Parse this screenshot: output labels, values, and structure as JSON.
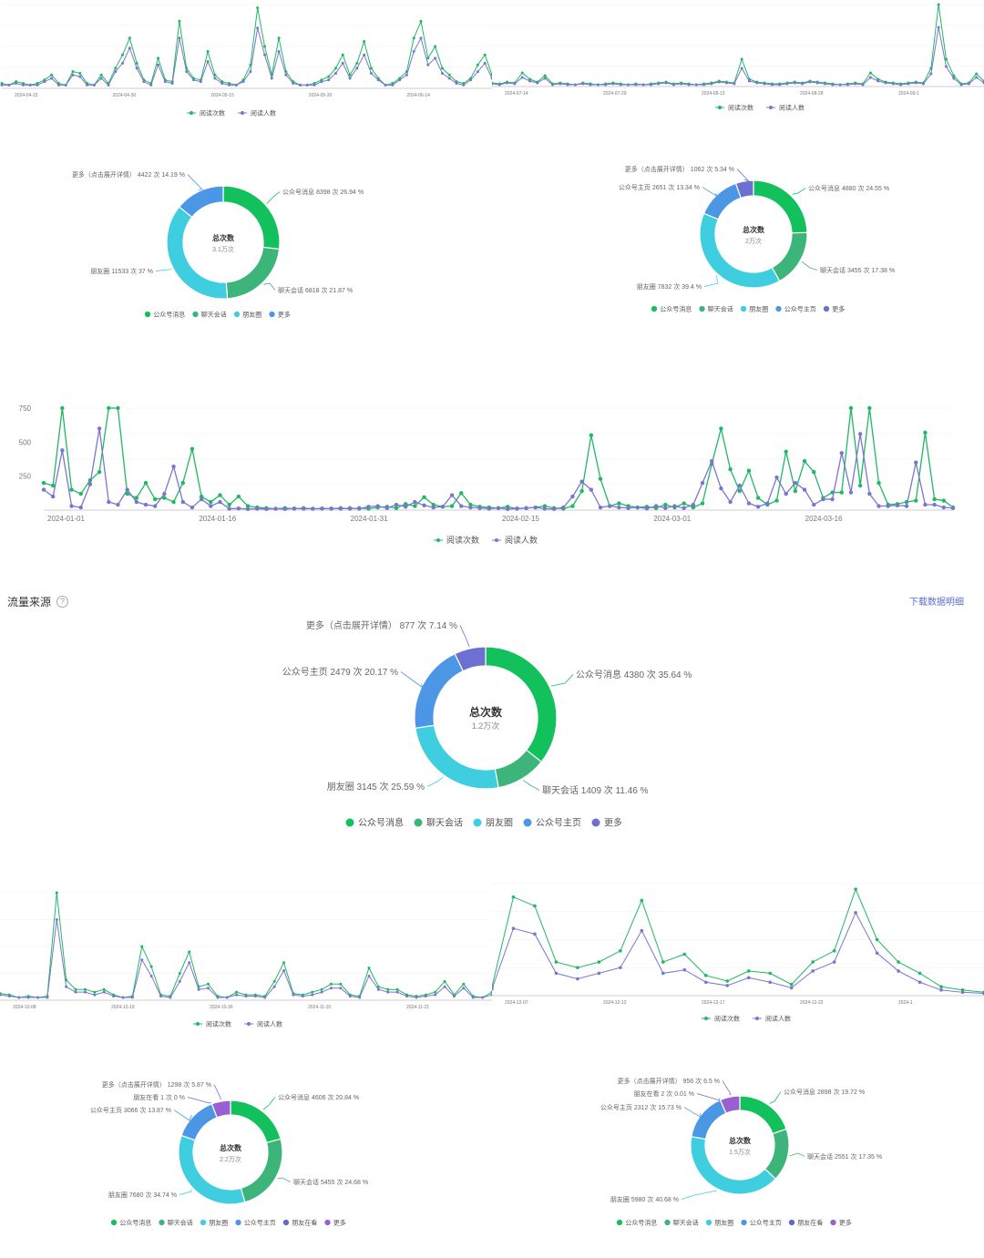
{
  "colors": {
    "read_count": "#20b864",
    "read_users": "#7a76cf",
    "gzh_msg": "#12c05c",
    "chat": "#3cb47a",
    "moments": "#3fcde0",
    "gzh_home": "#4b97e6",
    "friends_watching": "#5c6bc8",
    "more_blue": "#6c70d0",
    "more_purple": "#9a5fd0",
    "grid": "#efefef"
  },
  "section": {
    "title": "流量来源",
    "help_icon": "question-circle-icon",
    "download_label": "下载数据明细"
  },
  "donut_center_label": "总次数",
  "line_legend": {
    "read_count": "阅读次数",
    "read_users": "阅读人数"
  },
  "chart_data": [
    {
      "id": "line_a",
      "type": "line",
      "x_ticks": [
        "2024-04-15",
        "2024-04-30",
        "2024-05-15",
        "2024-05-30",
        "2024-06-14"
      ],
      "series": [
        {
          "name": "阅读次数",
          "values": [
            3,
            2,
            4,
            3,
            2,
            3,
            5,
            8,
            3,
            2,
            10,
            9,
            3,
            2,
            8,
            3,
            12,
            20,
            30,
            15,
            5,
            3,
            18,
            5,
            4,
            40,
            12,
            6,
            5,
            22,
            8,
            4,
            3,
            2,
            5,
            14,
            48,
            25,
            8,
            30,
            10,
            4,
            2,
            2,
            3,
            5,
            7,
            12,
            20,
            8,
            15,
            28,
            12,
            6,
            2,
            3,
            6,
            10,
            30,
            40,
            18,
            25,
            12,
            8,
            4,
            3,
            6,
            14,
            20,
            8
          ]
        },
        {
          "name": "阅读人数",
          "values": [
            2,
            2,
            3,
            2,
            2,
            2,
            4,
            6,
            2,
            2,
            8,
            7,
            2,
            2,
            6,
            2,
            10,
            15,
            24,
            12,
            4,
            2,
            14,
            4,
            3,
            30,
            10,
            5,
            4,
            16,
            6,
            3,
            2,
            2,
            4,
            10,
            36,
            20,
            6,
            22,
            8,
            3,
            2,
            2,
            2,
            4,
            5,
            9,
            15,
            6,
            12,
            20,
            9,
            5,
            2,
            2,
            5,
            8,
            22,
            30,
            14,
            18,
            9,
            6,
            3,
            2,
            5,
            10,
            15,
            6
          ]
        }
      ]
    },
    {
      "id": "line_b",
      "type": "line",
      "x_ticks": [
        "2024-07-14",
        "2024-07-29",
        "2024-08-13",
        "2024-08-28",
        "2024-09-1"
      ],
      "series": [
        {
          "name": "阅读次数",
          "values": [
            4,
            3,
            5,
            4,
            15,
            8,
            5,
            12,
            3,
            4,
            3,
            2,
            4,
            3,
            2,
            3,
            4,
            3,
            2,
            3,
            2,
            3,
            4,
            5,
            3,
            4,
            3,
            2,
            3,
            4,
            6,
            5,
            4,
            30,
            8,
            5,
            4,
            3,
            3,
            4,
            5,
            4,
            6,
            5,
            4,
            3,
            2,
            3,
            4,
            3,
            15,
            8,
            5,
            4,
            3,
            4,
            5,
            4,
            20,
            90,
            30,
            12,
            3,
            4,
            14,
            6
          ]
        },
        {
          "name": "阅读人数",
          "values": [
            3,
            2,
            4,
            3,
            10,
            6,
            4,
            9,
            2,
            3,
            2,
            2,
            3,
            2,
            2,
            2,
            3,
            2,
            2,
            2,
            2,
            2,
            3,
            4,
            2,
            3,
            2,
            2,
            2,
            3,
            5,
            4,
            3,
            20,
            6,
            4,
            3,
            2,
            2,
            3,
            4,
            3,
            5,
            4,
            3,
            2,
            2,
            2,
            3,
            2,
            10,
            6,
            4,
            3,
            2,
            3,
            4,
            3,
            14,
            65,
            22,
            9,
            2,
            3,
            10,
            4
          ]
        }
      ]
    },
    {
      "id": "line_c",
      "type": "line",
      "x_ticks": [
        "2024-01-01",
        "2024-01-16",
        "2024-01-31",
        "2024-02-15",
        "2024-03-01",
        "2024-03-16"
      ],
      "y_ticks": [
        "750",
        "500",
        "250"
      ],
      "ylim": [
        0,
        750
      ],
      "series": [
        {
          "name": "阅读次数",
          "values": [
            200,
            180,
            750,
            150,
            120,
            220,
            280,
            750,
            750,
            120,
            90,
            200,
            80,
            90,
            60,
            200,
            450,
            100,
            60,
            110,
            40,
            100,
            30,
            20,
            15,
            10,
            15,
            10,
            15,
            10,
            12,
            10,
            15,
            10,
            15,
            10,
            20,
            25,
            15,
            45,
            30,
            95,
            40,
            25,
            30,
            125,
            40,
            25,
            20,
            15,
            25,
            10,
            15,
            20,
            30,
            15,
            10,
            30,
            140,
            550,
            230,
            30,
            50,
            30,
            20,
            25,
            15,
            40,
            20,
            50,
            20,
            50,
            340,
            600,
            300,
            140,
            290,
            90,
            40,
            70,
            430,
            140,
            360,
            280,
            90,
            130,
            130,
            750,
            180,
            750,
            200,
            40,
            45,
            60,
            70,
            570,
            80,
            70,
            20
          ]
        },
        {
          "name": "阅读人数",
          "values": [
            150,
            100,
            440,
            30,
            20,
            190,
            600,
            60,
            40,
            150,
            60,
            40,
            30,
            120,
            320,
            60,
            20,
            80,
            30,
            60,
            10,
            12,
            8,
            10,
            8,
            10,
            8,
            12,
            10,
            10,
            10,
            12,
            10,
            15,
            10,
            25,
            30,
            15,
            40,
            25,
            60,
            35,
            20,
            25,
            110,
            30,
            20,
            15,
            10,
            15,
            8,
            12,
            15,
            20,
            10,
            8,
            20,
            100,
            210,
            150,
            20,
            30,
            20,
            15,
            20,
            12,
            30,
            15,
            30,
            15,
            40,
            200,
            360,
            160,
            60,
            180,
            50,
            25,
            50,
            240,
            120,
            200,
            150,
            40,
            80,
            80,
            420,
            130,
            560,
            120,
            30,
            30,
            35,
            30,
            350,
            40,
            40,
            20,
            15
          ]
        }
      ]
    },
    {
      "id": "line_d",
      "type": "line",
      "x_ticks": [
        "2024-10-08",
        "2024-10-19",
        "2024-10-30",
        "2024-11-10",
        "2024-11-21"
      ],
      "series": [
        {
          "name": "阅读次数",
          "values": [
            5,
            4,
            2,
            3,
            2,
            3,
            80,
            15,
            8,
            8,
            6,
            8,
            4,
            2,
            3,
            40,
            25,
            4,
            3,
            20,
            36,
            10,
            12,
            3,
            2,
            6,
            4,
            4,
            3,
            14,
            28,
            5,
            4,
            6,
            8,
            12,
            12,
            4,
            3,
            24,
            10,
            8,
            8,
            4,
            3,
            4,
            6,
            14,
            4,
            12,
            3,
            2,
            6
          ]
        },
        {
          "name": "阅读人数",
          "values": [
            4,
            3,
            2,
            2,
            2,
            2,
            60,
            10,
            6,
            6,
            4,
            6,
            3,
            2,
            2,
            30,
            18,
            3,
            2,
            14,
            28,
            8,
            9,
            2,
            2,
            4,
            3,
            3,
            2,
            10,
            22,
            4,
            3,
            4,
            6,
            9,
            9,
            3,
            2,
            18,
            8,
            6,
            6,
            3,
            2,
            3,
            4,
            10,
            3,
            9,
            2,
            2,
            4
          ]
        }
      ]
    },
    {
      "id": "line_e",
      "type": "line",
      "x_ticks": [
        "2024-12-07",
        "2024-12-12",
        "2024-12-17",
        "2024-12-22",
        "2024-1"
      ],
      "series": [
        {
          "name": "阅读次数",
          "values": [
            8,
            88,
            80,
            30,
            25,
            30,
            40,
            85,
            30,
            37,
            18,
            13,
            22,
            20,
            10,
            30,
            40,
            95,
            50,
            30,
            20,
            8,
            5,
            3
          ]
        },
        {
          "name": "阅读人数",
          "values": [
            6,
            60,
            55,
            20,
            15,
            20,
            25,
            58,
            20,
            23,
            12,
            9,
            16,
            12,
            7,
            22,
            30,
            74,
            38,
            22,
            12,
            5,
            3,
            2
          ]
        }
      ]
    },
    {
      "id": "donut_a",
      "type": "pie",
      "center_value": "3.1万次",
      "slices": [
        {
          "name": "公众号消息",
          "label": "公众号消息 8398 次 26.94 %",
          "value": 26.94,
          "color": "#12c05c"
        },
        {
          "name": "聊天会话",
          "label": "聊天会话 6818 次 21.87 %",
          "value": 21.87,
          "color": "#3cb47a"
        },
        {
          "name": "朋友圈",
          "label": "朋友圈 11533 次 37 %",
          "value": 37,
          "color": "#3fcde0"
        },
        {
          "name": "更多",
          "label": "更多（点击展开详情） 4422 次 14.19 %",
          "value": 14.19,
          "color": "#4b97e6"
        }
      ]
    },
    {
      "id": "donut_b",
      "type": "pie",
      "center_value": "2万次",
      "slices": [
        {
          "name": "公众号消息",
          "label": "公众号消息 4880 次 24.55 %",
          "value": 24.55,
          "color": "#12c05c"
        },
        {
          "name": "聊天会话",
          "label": "聊天会话 3455 次 17.38 %",
          "value": 17.38,
          "color": "#3cb47a"
        },
        {
          "name": "朋友圈",
          "label": "朋友圈 7832 次 39.4 %",
          "value": 39.4,
          "color": "#3fcde0"
        },
        {
          "name": "公众号主页",
          "label": "公众号主页 2651 次 13.34 %",
          "value": 13.34,
          "color": "#4b97e6"
        },
        {
          "name": "更多",
          "label": "更多（点击展开详情） 1062 次 5.34 %",
          "value": 5.34,
          "color": "#6c70d0"
        }
      ]
    },
    {
      "id": "donut_c",
      "type": "pie",
      "center_value": "1.2万次",
      "slices": [
        {
          "name": "公众号消息",
          "label": "公众号消息 4380 次 35.64 %",
          "value": 35.64,
          "color": "#12c05c"
        },
        {
          "name": "聊天会话",
          "label": "聊天会话 1409 次 11.46 %",
          "value": 11.46,
          "color": "#3cb47a"
        },
        {
          "name": "朋友圈",
          "label": "朋友圈 3145 次 25.59 %",
          "value": 25.59,
          "color": "#3fcde0"
        },
        {
          "name": "公众号主页",
          "label": "公众号主页 2479 次 20.17 %",
          "value": 20.17,
          "color": "#4b97e6"
        },
        {
          "name": "更多",
          "label": "更多（点击展开详情） 877 次 7.14 %",
          "value": 7.14,
          "color": "#6c70d0"
        }
      ]
    },
    {
      "id": "donut_d",
      "type": "pie",
      "center_value": "2.2万次",
      "slices": [
        {
          "name": "公众号消息",
          "label": "公众号消息 4606 次 20.84 %",
          "value": 20.84,
          "color": "#12c05c"
        },
        {
          "name": "聊天会话",
          "label": "聊天会话 5455 次 24.68 %",
          "value": 24.68,
          "color": "#3cb47a"
        },
        {
          "name": "朋友圈",
          "label": "朋友圈 7680 次 34.74 %",
          "value": 34.74,
          "color": "#3fcde0"
        },
        {
          "name": "公众号主页",
          "label": "公众号主页 3066 次 13.87 %",
          "value": 13.87,
          "color": "#4b97e6"
        },
        {
          "name": "朋友在看",
          "label": "朋友在看 1 次 0 %",
          "value": 0,
          "color": "#5c6bc8"
        },
        {
          "name": "更多",
          "label": "更多（点击展开详情） 1298 次 5.87 %",
          "value": 5.87,
          "color": "#9a5fd0"
        }
      ]
    },
    {
      "id": "donut_e",
      "type": "pie",
      "center_value": "1.5万次",
      "slices": [
        {
          "name": "公众号消息",
          "label": "公众号消息 2898 次 19.72 %",
          "value": 19.72,
          "color": "#12c05c"
        },
        {
          "name": "聊天会话",
          "label": "聊天会话 2551 次 17.35 %",
          "value": 17.35,
          "color": "#3cb47a"
        },
        {
          "name": "朋友圈",
          "label": "朋友圈 5980 次 40.68 %",
          "value": 40.68,
          "color": "#3fcde0"
        },
        {
          "name": "公众号主页",
          "label": "公众号主页 2312 次 15.73 %",
          "value": 15.73,
          "color": "#4b97e6"
        },
        {
          "name": "朋友在看",
          "label": "朋友在看 2 次 0.01 %",
          "value": 0.01,
          "color": "#5c6bc8"
        },
        {
          "name": "更多",
          "label": "更多（点击展开详情） 956 次 6.5 %",
          "value": 6.5,
          "color": "#9a5fd0"
        }
      ]
    }
  ]
}
